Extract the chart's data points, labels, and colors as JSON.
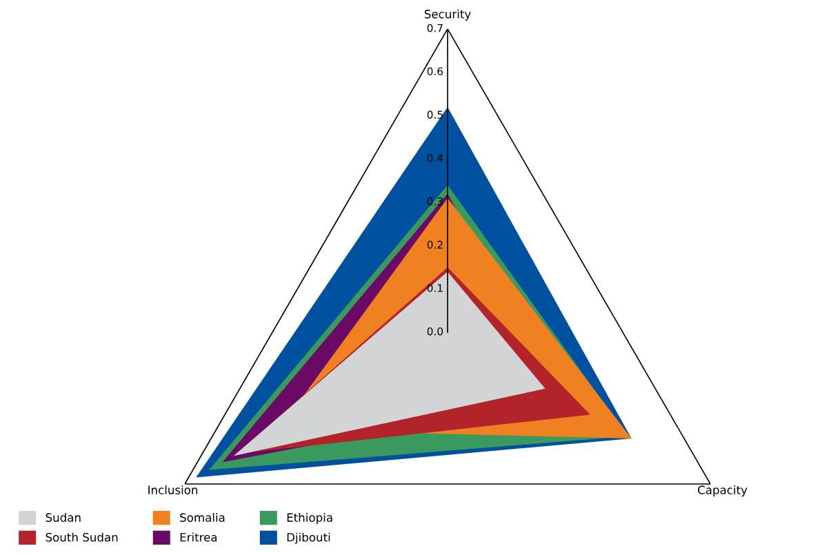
{
  "chart_data": {
    "type": "radar",
    "categories": [
      "Security",
      "Capacity",
      "Inclusion"
    ],
    "ylim": [
      0,
      0.7
    ],
    "yticks": [
      {
        "value": 0,
        "label": "0.0"
      },
      0.1,
      0.2,
      0.3,
      0.4,
      0.5,
      0.6,
      0.7
    ],
    "legend": "bottom left",
    "series": [
      {
        "name": "Sudan",
        "color": "#d3d4d6",
        "values": [
          0.14,
          0.26,
          0.57
        ]
      },
      {
        "name": "South Sudan",
        "color": "#b3232a",
        "values": [
          0.15,
          0.38,
          0.56
        ]
      },
      {
        "name": "Somalia",
        "color": "#f08122",
        "values": [
          0.31,
          0.49,
          0.45
        ]
      },
      {
        "name": "Eritrea",
        "color": "#6a0a66",
        "values": [
          0.32,
          0.3,
          0.6
        ]
      },
      {
        "name": "Ethiopia",
        "color": "#3a9a5e",
        "values": [
          0.34,
          0.48,
          0.635
        ]
      },
      {
        "name": "Djibouti",
        "color": "#0050a0",
        "values": [
          0.52,
          0.49,
          0.67
        ]
      }
    ]
  }
}
